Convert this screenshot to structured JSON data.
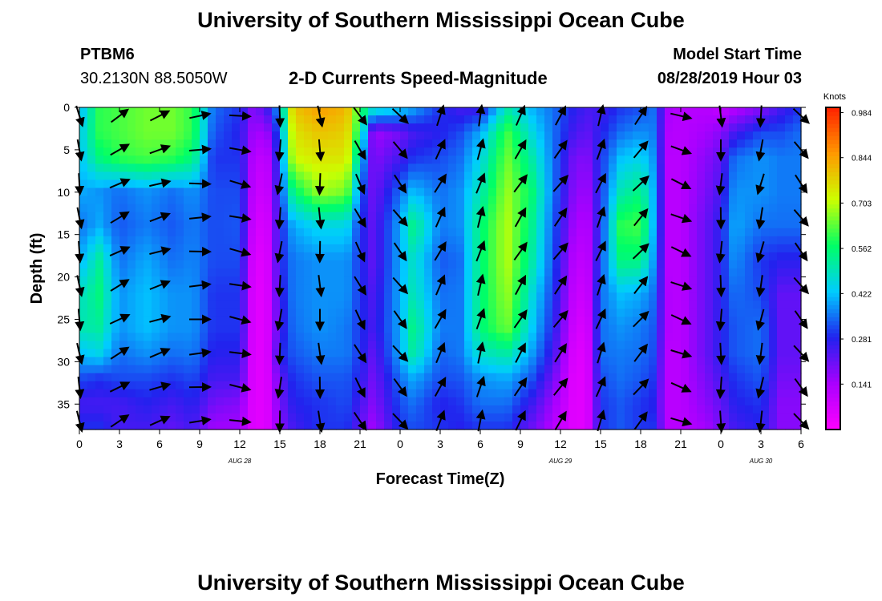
{
  "page": {
    "title_top": "University of Southern Mississippi Ocean Cube",
    "title_bottom": "University of Southern Mississippi Ocean Cube",
    "station": "PTBM6",
    "coords": "30.2130N 88.5050W",
    "subtitle": "2-D Currents Speed-Magnitude",
    "model_label": "Model Start Time",
    "model_time": "08/28/2019 Hour 03"
  },
  "chart_data": {
    "type": "heatmap",
    "title": "2-D Currents Speed-Magnitude",
    "xlabel": "Forecast Time(Z)",
    "ylabel": "Depth (ft)",
    "x_tick_labels": [
      "0",
      "3",
      "6",
      "9",
      "12",
      "15",
      "18",
      "21",
      "0",
      "3",
      "6",
      "9",
      "12",
      "15",
      "18",
      "21",
      "0",
      "3",
      "6"
    ],
    "day_labels": [
      {
        "text": "AUG 28",
        "hour": 12
      },
      {
        "text": "AUG 29",
        "hour": 36
      },
      {
        "text": "AUG 30",
        "hour": 51
      }
    ],
    "xlim_hours": [
      0,
      54
    ],
    "ylim_depth_ft": [
      0,
      38
    ],
    "y_ticks": [
      0,
      5,
      10,
      15,
      20,
      25,
      30,
      35
    ],
    "colorbar": {
      "label": "Knots",
      "range": [
        0,
        1.0
      ],
      "ticks": [
        "0.141",
        "0.281",
        "0.422",
        "0.562",
        "0.703",
        "0.844",
        "0.984"
      ],
      "tick_values": [
        0.141,
        0.281,
        0.422,
        0.562,
        0.703,
        0.844,
        0.984
      ],
      "colors": [
        "#ff00ff",
        "#aa00ff",
        "#2222ee",
        "#00ccff",
        "#00ff66",
        "#ccff00",
        "#ff9900",
        "#ff2200"
      ]
    },
    "speed_profiles": [
      {
        "hour": 0,
        "speeds": [
          0.4,
          0.43,
          0.42,
          0.4,
          0.35,
          0.4,
          0.48,
          0.5,
          0.42,
          0.32,
          0.25,
          0.3
        ]
      },
      {
        "hour": 1.5,
        "speeds": [
          0.6,
          0.6,
          0.55,
          0.38,
          0.4,
          0.52,
          0.55,
          0.52,
          0.45,
          0.3,
          0.25,
          0.3
        ]
      },
      {
        "hour": 3,
        "speeds": [
          0.62,
          0.62,
          0.6,
          0.35,
          0.33,
          0.35,
          0.38,
          0.38,
          0.35,
          0.32,
          0.25,
          0.25
        ]
      },
      {
        "hour": 5,
        "speeds": [
          0.65,
          0.65,
          0.62,
          0.38,
          0.36,
          0.4,
          0.42,
          0.42,
          0.38,
          0.32,
          0.28,
          0.25
        ]
      },
      {
        "hour": 7,
        "speeds": [
          0.65,
          0.65,
          0.6,
          0.35,
          0.33,
          0.35,
          0.38,
          0.38,
          0.35,
          0.3,
          0.25,
          0.22
        ]
      },
      {
        "hour": 8.5,
        "speeds": [
          0.6,
          0.6,
          0.55,
          0.38,
          0.36,
          0.37,
          0.38,
          0.38,
          0.36,
          0.32,
          0.28,
          0.25
        ]
      },
      {
        "hour": 10,
        "speeds": [
          0.35,
          0.33,
          0.3,
          0.32,
          0.32,
          0.32,
          0.3,
          0.3,
          0.28,
          0.25,
          0.2,
          0.15
        ]
      },
      {
        "hour": 12,
        "speeds": [
          0.3,
          0.28,
          0.3,
          0.32,
          0.33,
          0.32,
          0.3,
          0.3,
          0.28,
          0.25,
          0.18,
          0.15
        ]
      },
      {
        "hour": 13,
        "speeds": [
          0.18,
          0.15,
          0.12,
          0.1,
          0.08,
          0.06,
          0.05,
          0.05,
          0.05,
          0.05,
          0.05,
          0.05
        ]
      },
      {
        "hour": 14,
        "speeds": [
          0.25,
          0.15,
          0.1,
          0.08,
          0.06,
          0.05,
          0.05,
          0.05,
          0.05,
          0.05,
          0.05,
          0.05
        ]
      },
      {
        "hour": 15,
        "speeds": [
          0.4,
          0.35,
          0.32,
          0.3,
          0.28,
          0.28,
          0.26,
          0.25,
          0.28,
          0.22,
          0.2,
          0.18
        ]
      },
      {
        "hour": 16,
        "speeds": [
          0.8,
          0.75,
          0.72,
          0.55,
          0.4,
          0.36,
          0.36,
          0.35,
          0.33,
          0.3,
          0.28,
          0.25
        ]
      },
      {
        "hour": 18,
        "speeds": [
          0.85,
          0.8,
          0.75,
          0.68,
          0.45,
          0.38,
          0.38,
          0.38,
          0.36,
          0.33,
          0.3,
          0.3
        ]
      },
      {
        "hour": 20,
        "speeds": [
          0.82,
          0.78,
          0.75,
          0.65,
          0.45,
          0.38,
          0.38,
          0.36,
          0.36,
          0.33,
          0.32,
          0.3
        ]
      },
      {
        "hour": 21,
        "speeds": [
          0.6,
          0.55,
          0.45,
          0.35,
          0.3,
          0.3,
          0.3,
          0.3,
          0.3,
          0.28,
          0.25,
          0.22
        ]
      },
      {
        "hour": 22,
        "speeds": [
          0.5,
          0.15,
          0.18,
          0.2,
          0.22,
          0.22,
          0.24,
          0.25,
          0.22,
          0.2,
          0.18,
          0.15
        ]
      },
      {
        "hour": 24,
        "speeds": [
          0.45,
          0.2,
          0.25,
          0.35,
          0.4,
          0.4,
          0.4,
          0.4,
          0.4,
          0.35,
          0.32,
          0.3
        ]
      },
      {
        "hour": 25,
        "speeds": [
          0.4,
          0.25,
          0.3,
          0.42,
          0.55,
          0.48,
          0.5,
          0.55,
          0.52,
          0.4,
          0.35,
          0.32
        ]
      },
      {
        "hour": 27,
        "speeds": [
          0.3,
          0.28,
          0.32,
          0.35,
          0.36,
          0.33,
          0.35,
          0.36,
          0.34,
          0.32,
          0.28,
          0.3
        ]
      },
      {
        "hour": 28.5,
        "speeds": [
          0.25,
          0.32,
          0.35,
          0.38,
          0.38,
          0.35,
          0.36,
          0.36,
          0.36,
          0.33,
          0.3,
          0.28
        ]
      },
      {
        "hour": 30,
        "speeds": [
          0.25,
          0.4,
          0.45,
          0.5,
          0.55,
          0.55,
          0.55,
          0.55,
          0.48,
          0.38,
          0.35,
          0.3
        ]
      },
      {
        "hour": 32,
        "speeds": [
          0.5,
          0.62,
          0.65,
          0.68,
          0.7,
          0.7,
          0.68,
          0.65,
          0.52,
          0.4,
          0.35,
          0.3
        ]
      },
      {
        "hour": 34,
        "speeds": [
          0.4,
          0.45,
          0.5,
          0.55,
          0.52,
          0.5,
          0.45,
          0.42,
          0.38,
          0.32,
          0.25,
          0.2
        ]
      },
      {
        "hour": 35.5,
        "speeds": [
          0.35,
          0.35,
          0.35,
          0.35,
          0.33,
          0.32,
          0.3,
          0.28,
          0.25,
          0.2,
          0.15,
          0.12
        ]
      },
      {
        "hour": 37,
        "speeds": [
          0.28,
          0.25,
          0.2,
          0.18,
          0.15,
          0.12,
          0.1,
          0.08,
          0.06,
          0.05,
          0.05,
          0.05
        ]
      },
      {
        "hour": 38,
        "speeds": [
          0.25,
          0.22,
          0.18,
          0.15,
          0.12,
          0.1,
          0.08,
          0.06,
          0.05,
          0.05,
          0.05,
          0.05
        ]
      },
      {
        "hour": 39,
        "speeds": [
          0.25,
          0.28,
          0.3,
          0.3,
          0.3,
          0.32,
          0.35,
          0.35,
          0.35,
          0.32,
          0.3,
          0.3
        ]
      },
      {
        "hour": 40.5,
        "speeds": [
          0.3,
          0.35,
          0.42,
          0.5,
          0.6,
          0.55,
          0.42,
          0.38,
          0.36,
          0.35,
          0.33,
          0.33
        ]
      },
      {
        "hour": 42,
        "speeds": [
          0.32,
          0.38,
          0.45,
          0.55,
          0.62,
          0.55,
          0.4,
          0.36,
          0.35,
          0.33,
          0.3,
          0.3
        ]
      },
      {
        "hour": 43,
        "speeds": [
          0.35,
          0.36,
          0.38,
          0.4,
          0.4,
          0.38,
          0.35,
          0.33,
          0.32,
          0.3,
          0.28,
          0.3
        ]
      },
      {
        "hour": 44,
        "speeds": [
          0.15,
          0.13,
          0.12,
          0.12,
          0.12,
          0.12,
          0.13,
          0.13,
          0.12,
          0.12,
          0.12,
          0.12
        ]
      },
      {
        "hour": 45,
        "speeds": [
          0.12,
          0.12,
          0.12,
          0.12,
          0.12,
          0.12,
          0.12,
          0.12,
          0.12,
          0.12,
          0.12,
          0.12
        ]
      },
      {
        "hour": 47,
        "speeds": [
          0.12,
          0.15,
          0.18,
          0.2,
          0.22,
          0.22,
          0.22,
          0.22,
          0.22,
          0.2,
          0.18,
          0.15
        ]
      },
      {
        "hour": 48,
        "speeds": [
          0.1,
          0.18,
          0.22,
          0.25,
          0.28,
          0.28,
          0.28,
          0.28,
          0.28,
          0.25,
          0.22,
          0.2
        ]
      },
      {
        "hour": 49,
        "speeds": [
          0.12,
          0.25,
          0.35,
          0.38,
          0.4,
          0.38,
          0.35,
          0.33,
          0.33,
          0.3,
          0.28,
          0.25
        ]
      },
      {
        "hour": 51,
        "speeds": [
          0.18,
          0.32,
          0.38,
          0.38,
          0.35,
          0.3,
          0.32,
          0.35,
          0.35,
          0.33,
          0.3,
          0.28
        ]
      },
      {
        "hour": 52.5,
        "speeds": [
          0.25,
          0.32,
          0.36,
          0.36,
          0.35,
          0.28,
          0.22,
          0.22,
          0.22,
          0.2,
          0.18,
          0.18
        ]
      },
      {
        "hour": 54,
        "speeds": [
          0.3,
          0.35,
          0.36,
          0.36,
          0.35,
          0.28,
          0.22,
          0.22,
          0.22,
          0.2,
          0.18,
          0.18
        ]
      }
    ],
    "profile_depths_ft": [
      0,
      3,
      6,
      10,
      14,
      18,
      22,
      26,
      29,
      32,
      35,
      38
    ],
    "arrow_hours": [
      0,
      3,
      6,
      9,
      12,
      15,
      18,
      21,
      24,
      27,
      30,
      33,
      36,
      39,
      42,
      45,
      48,
      51,
      54
    ],
    "arrow_depths_ft": [
      1,
      5,
      9,
      13,
      17,
      21,
      25,
      29,
      33,
      37
    ],
    "arrow_direction_deg_by_hour": [
      170,
      60,
      70,
      85,
      100,
      185,
      175,
      150,
      140,
      25,
      15,
      30,
      35,
      20,
      40,
      110,
      180,
      190,
      140
    ]
  }
}
